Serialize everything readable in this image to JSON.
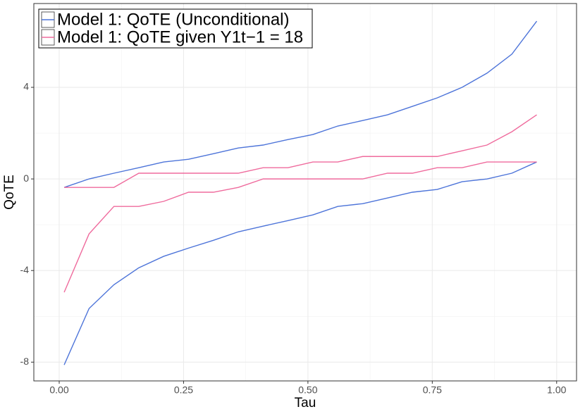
{
  "chart_data": {
    "type": "line",
    "x_label": "Tau",
    "y_label": "QoTE",
    "x": [
      0.01,
      0.06,
      0.11,
      0.16,
      0.21,
      0.26,
      0.31,
      0.36,
      0.41,
      0.46,
      0.51,
      0.56,
      0.61,
      0.66,
      0.71,
      0.76,
      0.81,
      0.86,
      0.91,
      0.96
    ],
    "series": [
      {
        "name": "Model 1: QoTE (Unconditional)",
        "color": "#4d74d9",
        "upper": [
          -0.37,
          0,
          0.25,
          0.49,
          0.74,
          0.86,
          1.1,
          1.35,
          1.48,
          1.72,
          1.94,
          2.31,
          2.55,
          2.8,
          3.17,
          3.54,
          4.0,
          4.62,
          5.45,
          6.89
        ],
        "lower": [
          -8.12,
          -5.66,
          -4.62,
          -3.88,
          -3.38,
          -3.02,
          -2.68,
          -2.31,
          -2.06,
          -1.82,
          -1.57,
          -1.2,
          -1.08,
          -0.83,
          -0.58,
          -0.46,
          -0.12,
          0,
          0.25,
          0.74
        ]
      },
      {
        "name": "Model 1: QoTE given Y1t−1 = 18",
        "color": "#ef6b9d",
        "upper": [
          -0.37,
          -0.37,
          -0.37,
          0.25,
          0.25,
          0.25,
          0.25,
          0.25,
          0.49,
          0.49,
          0.74,
          0.74,
          0.98,
          0.98,
          0.98,
          0.98,
          1.23,
          1.48,
          2.06,
          2.8
        ],
        "lower": [
          -4.95,
          -2.4,
          -1.2,
          -1.2,
          -0.98,
          -0.58,
          -0.58,
          -0.37,
          0,
          0,
          0,
          0,
          0,
          0.25,
          0.25,
          0.49,
          0.49,
          0.74,
          0.74,
          0.74
        ]
      }
    ],
    "xlim": [
      -0.051,
      1.04
    ],
    "ylim": [
      -8.82,
      7.66
    ],
    "xticks": [
      {
        "value": 0,
        "label": "0.00"
      },
      {
        "value": 0.25,
        "label": "0.25"
      },
      {
        "value": 0.5,
        "label": "0.50"
      },
      {
        "value": 0.75,
        "label": "0.75"
      },
      {
        "value": 1,
        "label": "1.00"
      }
    ],
    "yticks": [
      -8,
      -4,
      0,
      4
    ],
    "grid": true,
    "legend_position": "top-left"
  }
}
